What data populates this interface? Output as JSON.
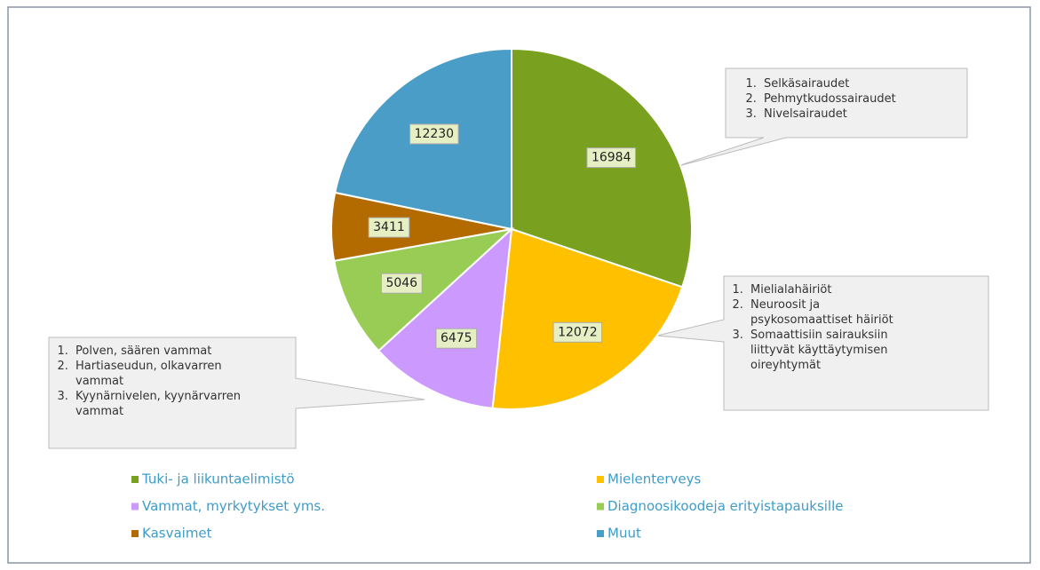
{
  "chart_data": {
    "type": "pie",
    "categories": [
      "Tuki- ja liikuntaelimistö",
      "Mielenterveys",
      "Vammat, myrkytykset yms.",
      "Diagnoosikoodeja erityistapauksille",
      "Kasvaimet",
      "Muut"
    ],
    "values": [
      16984,
      12072,
      6475,
      5046,
      3411,
      12230
    ],
    "colors": [
      "#79a11f",
      "#ffc000",
      "#cc99ff",
      "#99cc55",
      "#b36b00",
      "#4a9dc6"
    ],
    "legend": "bottom",
    "annotations": [
      {
        "items": [
          "Selkäsairaudet",
          "Pehmytkudossairaudet",
          "Nivelsairaudet"
        ]
      },
      {
        "items": [
          "Mielialahäiriöt",
          "Neuroosit ja psykosomaattiset häiriöt",
          "Somaattisiin sairauksiin liittyvät käyttäytymisen oireyhtymät"
        ]
      },
      {
        "items": [
          "Polven, säären vammat",
          "Hartiaseudun, olkavarren vammat",
          "Kyynärnivelen, kyynärvarren vammat"
        ]
      }
    ]
  }
}
